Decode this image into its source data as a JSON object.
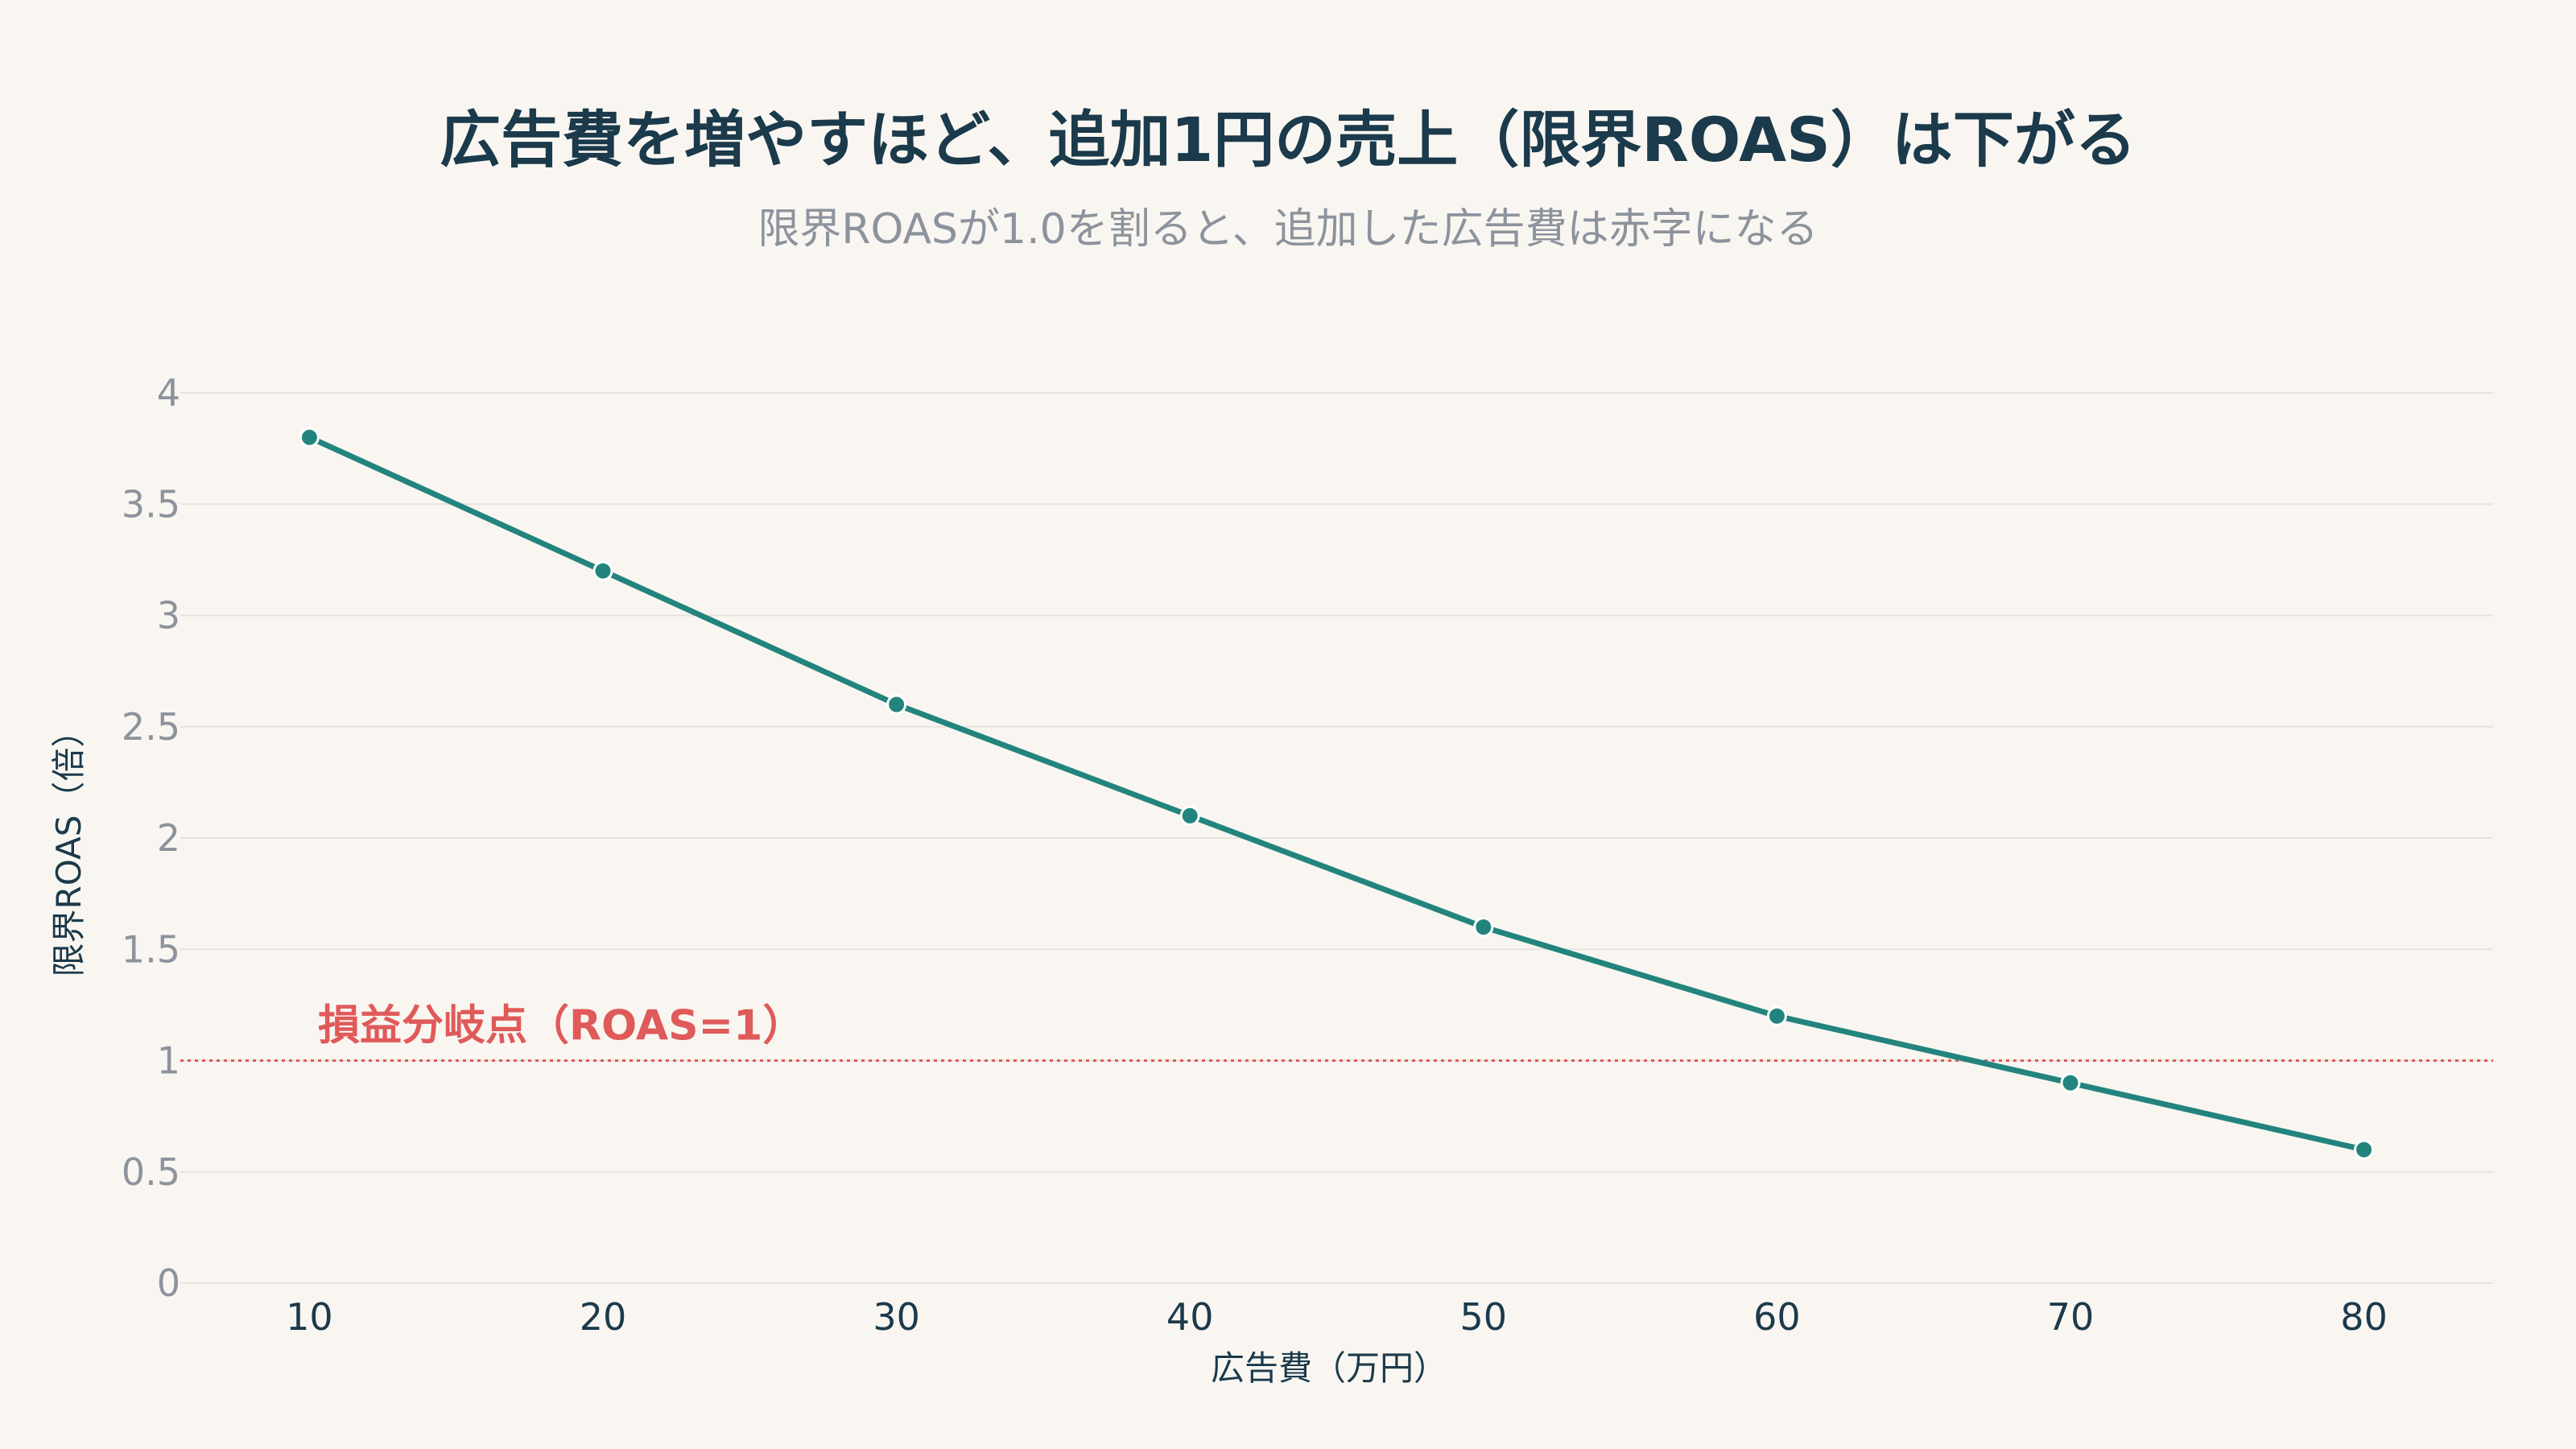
{
  "chart_data": {
    "type": "line",
    "title": "広告費を増やすほど、追加1円の売上（限界ROAS）は下がる",
    "subtitle": "限界ROASが1.0を割ると、追加した広告費は赤字になる",
    "xlabel": "広告費（万円）",
    "ylabel": "限界ROAS（倍）",
    "x": [
      10,
      20,
      30,
      40,
      50,
      60,
      70,
      80
    ],
    "values": [
      3.8,
      3.2,
      2.6,
      2.1,
      1.6,
      1.2,
      0.9,
      0.6
    ],
    "xlim": [
      5.6,
      84.4
    ],
    "ylim": [
      0,
      4
    ],
    "yticks": [
      0,
      0.5,
      1,
      1.5,
      2,
      2.5,
      3,
      3.5,
      4
    ],
    "ytick_labels": [
      "0",
      "0.5",
      "1",
      "1.5",
      "2",
      "2.5",
      "3",
      "3.5",
      "4"
    ],
    "xticks": [
      10,
      20,
      30,
      40,
      50,
      60,
      70,
      80
    ],
    "xtick_labels": [
      "10",
      "20",
      "30",
      "40",
      "50",
      "60",
      "70",
      "80"
    ],
    "grid": true,
    "reference_line": {
      "y": 1,
      "label": "損益分岐点（ROAS=1）",
      "color": "#e05a5a",
      "style": "dotted"
    },
    "colors": {
      "line": "#23847e",
      "background": "#f9f6f1",
      "grid": "#e6e3de",
      "title": "#1b3a4b",
      "muted": "#8c939d"
    }
  }
}
